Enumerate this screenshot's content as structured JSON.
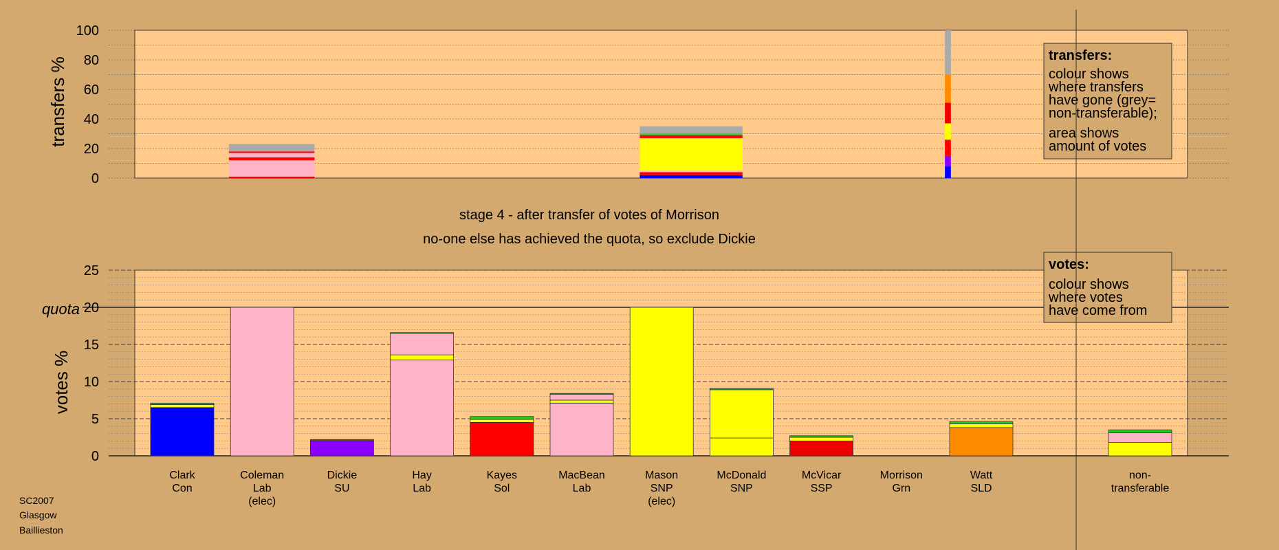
{
  "stage_title": "stage 4 - after transfer of votes of Morrison",
  "stage_subtitle": "no-one else has achieved the quota, so exclude Dickie",
  "footer": [
    "SC2007",
    "Glasgow",
    "Baillieston"
  ],
  "colors": {
    "background": "#d4a96f",
    "plot": "#ffc98a",
    "Con": "#0000ff",
    "Lab": "#ffb3c6",
    "SU": "#8a00ff",
    "Sol": "#ff0000",
    "SNP": "#ffff00",
    "SSP": "#ee0000",
    "Grn": "#22cc22",
    "SLD": "#ff8c00",
    "nontransferable": "#aaaaaa"
  },
  "chart_data": [
    {
      "type": "bar",
      "id": "transfers",
      "ylabel": "transfers %",
      "ylim": [
        0,
        100
      ],
      "yticks": [
        0,
        20,
        40,
        60,
        80,
        100
      ],
      "grid": true,
      "legend": {
        "position": "top-right",
        "title": "transfers:",
        "lines": [
          "colour shows",
          "where transfers",
          "have gone (grey=",
          "non-transferable);",
          "area shows",
          "amount of votes"
        ]
      },
      "x_extent": [
        0,
        12.3
      ],
      "bars": [
        {
          "source": "Coleman",
          "x_center": 1.6,
          "width": 1.0,
          "segments": [
            {
              "party": "SSP",
              "value": 1
            },
            {
              "party": "Lab",
              "value": 11
            },
            {
              "party": "Sol",
              "value": 2
            },
            {
              "party": "Lab",
              "value": 3
            },
            {
              "party": "Sol",
              "value": 1
            },
            {
              "party": "nontransferable",
              "value": 5
            }
          ]
        },
        {
          "source": "Mason",
          "x_center": 6.5,
          "width": 1.2,
          "segments": [
            {
              "party": "Con",
              "value": 2
            },
            {
              "party": "Sol",
              "value": 2
            },
            {
              "party": "Lab",
              "value": 1
            },
            {
              "party": "SNP",
              "value": 22
            },
            {
              "party": "Sol",
              "value": 2
            },
            {
              "party": "Grn",
              "value": 1
            },
            {
              "party": "nontransferable",
              "value": 5
            }
          ]
        },
        {
          "source": "Morrison",
          "x_center": 9.5,
          "width": 0.07,
          "segments": [
            {
              "party": "Con",
              "value": 8
            },
            {
              "party": "SU",
              "value": 7
            },
            {
              "party": "Sol",
              "value": 11
            },
            {
              "party": "SNP",
              "value": 11
            },
            {
              "party": "SSP",
              "value": 14
            },
            {
              "party": "SLD",
              "value": 19
            },
            {
              "party": "nontransferable",
              "value": 30
            }
          ]
        }
      ]
    },
    {
      "type": "bar",
      "id": "votes",
      "ylabel": "votes %",
      "ylim": [
        0,
        25
      ],
      "yticks": [
        0,
        5,
        10,
        15,
        20,
        25
      ],
      "quota": 20,
      "quota_label": "quota",
      "grid": true,
      "legend": {
        "position": "top-right",
        "title": "votes:",
        "lines": [
          "colour shows",
          "where votes",
          "have come from"
        ]
      },
      "candidates": [
        {
          "name": "Clark",
          "party": "Con",
          "note": "",
          "segments": [
            {
              "party": "Con",
              "value": 6.5
            },
            {
              "party": "SNP",
              "value": 0.4
            },
            {
              "party": "Grn",
              "value": 0.2
            }
          ]
        },
        {
          "name": "Coleman",
          "party": "Lab",
          "note": "(elec)",
          "segments": [
            {
              "party": "Lab",
              "value": 20
            }
          ]
        },
        {
          "name": "Dickie",
          "party": "SU",
          "note": "",
          "segments": [
            {
              "party": "SU",
              "value": 2.0
            },
            {
              "party": "SNP",
              "value": 0.1
            },
            {
              "party": "Grn",
              "value": 0.1
            }
          ]
        },
        {
          "name": "Hay",
          "party": "Lab",
          "note": "",
          "segments": [
            {
              "party": "Lab",
              "value": 12.9
            },
            {
              "party": "SNP",
              "value": 0.7
            },
            {
              "party": "Lab",
              "value": 2.9
            },
            {
              "party": "Grn",
              "value": 0.1
            }
          ]
        },
        {
          "name": "Kayes",
          "party": "Sol",
          "note": "",
          "segments": [
            {
              "party": "Sol",
              "value": 4.5
            },
            {
              "party": "SNP",
              "value": 0.4
            },
            {
              "party": "Grn",
              "value": 0.4
            }
          ]
        },
        {
          "name": "MacBean",
          "party": "Lab",
          "note": "",
          "segments": [
            {
              "party": "Lab",
              "value": 7.1
            },
            {
              "party": "SNP",
              "value": 0.4
            },
            {
              "party": "Lab",
              "value": 0.8
            },
            {
              "party": "Grn",
              "value": 0.1
            }
          ]
        },
        {
          "name": "Mason",
          "party": "SNP",
          "note": "(elec)",
          "segments": [
            {
              "party": "SNP",
              "value": 20
            }
          ]
        },
        {
          "name": "McDonald",
          "party": "SNP",
          "note": "",
          "segments": [
            {
              "party": "SNP",
              "value": 2.4
            },
            {
              "party": "SNP",
              "value": 6.5
            },
            {
              "party": "Grn",
              "value": 0.2
            }
          ]
        },
        {
          "name": "McVicar",
          "party": "SSP",
          "note": "",
          "segments": [
            {
              "party": "SSP",
              "value": 2.0
            },
            {
              "party": "SNP",
              "value": 0.5
            },
            {
              "party": "Grn",
              "value": 0.2
            }
          ]
        },
        {
          "name": "Morrison",
          "party": "Grn",
          "note": "",
          "segments": []
        },
        {
          "name": "Watt",
          "party": "SLD",
          "note": "",
          "segments": [
            {
              "party": "SLD",
              "value": 3.8
            },
            {
              "party": "SNP",
              "value": 0.5
            },
            {
              "party": "Grn",
              "value": 0.3
            }
          ]
        },
        {
          "name": "non-",
          "party": "transferable",
          "note": "",
          "nontransferable": true,
          "segments": [
            {
              "party": "SNP",
              "value": 1.8
            },
            {
              "party": "Lab",
              "value": 1.3
            },
            {
              "party": "Grn",
              "value": 0.4
            }
          ]
        }
      ]
    }
  ]
}
